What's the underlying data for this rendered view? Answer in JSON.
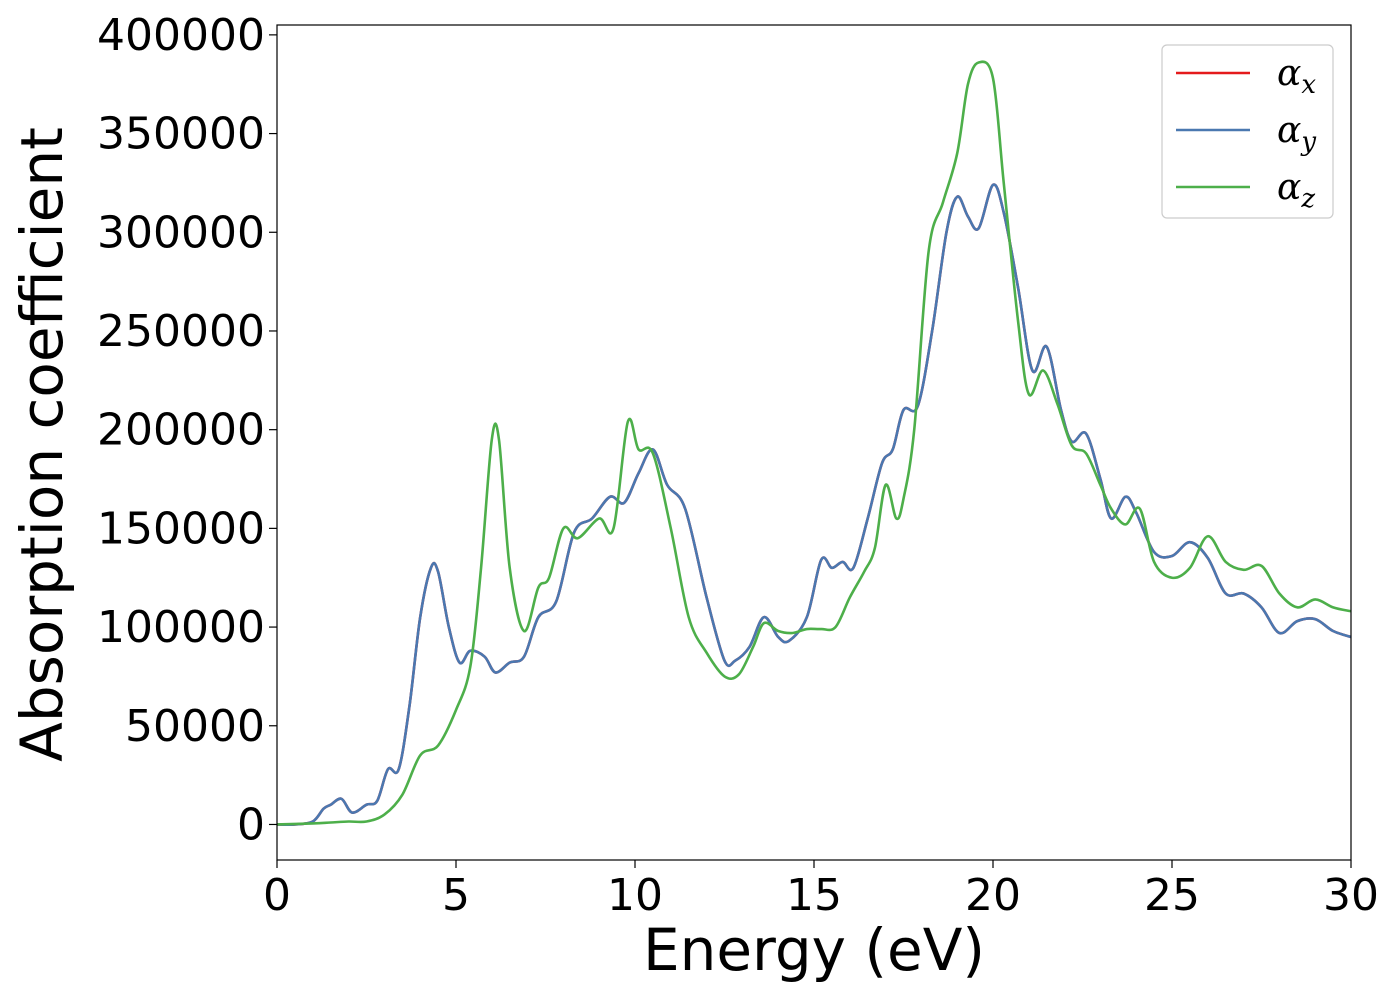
{
  "chart_data": {
    "type": "line",
    "title": "",
    "xlabel": "Energy (eV)",
    "ylabel": "Absorption coefficient",
    "xlim": [
      0,
      30
    ],
    "ylim": [
      -18000,
      405000
    ],
    "xticks": [
      0,
      5,
      10,
      15,
      20,
      25,
      30
    ],
    "xtick_labels": [
      "0",
      "5",
      "10",
      "15",
      "20",
      "25",
      "30"
    ],
    "yticks": [
      0,
      50000,
      100000,
      150000,
      200000,
      250000,
      300000,
      350000,
      400000
    ],
    "ytick_labels": [
      "0",
      "50000",
      "100000",
      "150000",
      "200000",
      "250000",
      "300000",
      "350000",
      "400000"
    ],
    "grid": false,
    "legend_position": "top-right",
    "series": [
      {
        "name": "α_x",
        "legend_base": "α",
        "legend_sub": "x",
        "color": "#e41a1c",
        "points": [
          [
            0,
            0
          ],
          [
            0.5,
            0
          ],
          [
            1.0,
            1500
          ],
          [
            1.3,
            8000
          ],
          [
            1.5,
            10000
          ],
          [
            1.8,
            13000
          ],
          [
            2.1,
            6000
          ],
          [
            2.5,
            10000
          ],
          [
            2.8,
            12000
          ],
          [
            3.1,
            28000
          ],
          [
            3.4,
            28000
          ],
          [
            3.7,
            60000
          ],
          [
            4.0,
            105000
          ],
          [
            4.3,
            130000
          ],
          [
            4.5,
            128000
          ],
          [
            4.8,
            100000
          ],
          [
            5.1,
            82000
          ],
          [
            5.4,
            88000
          ],
          [
            5.8,
            85000
          ],
          [
            6.1,
            77000
          ],
          [
            6.5,
            82000
          ],
          [
            6.9,
            85000
          ],
          [
            7.3,
            105000
          ],
          [
            7.8,
            113000
          ],
          [
            8.3,
            148000
          ],
          [
            8.8,
            155000
          ],
          [
            9.3,
            166000
          ],
          [
            9.7,
            163000
          ],
          [
            10.1,
            178000
          ],
          [
            10.5,
            190000
          ],
          [
            10.9,
            172000
          ],
          [
            11.4,
            160000
          ],
          [
            12.0,
            115000
          ],
          [
            12.5,
            83000
          ],
          [
            12.8,
            83000
          ],
          [
            13.2,
            90000
          ],
          [
            13.6,
            105000
          ],
          [
            14.0,
            95000
          ],
          [
            14.3,
            93000
          ],
          [
            14.8,
            105000
          ],
          [
            15.2,
            134000
          ],
          [
            15.5,
            130000
          ],
          [
            15.8,
            133000
          ],
          [
            16.1,
            130000
          ],
          [
            16.5,
            155000
          ],
          [
            16.9,
            183000
          ],
          [
            17.2,
            190000
          ],
          [
            17.5,
            210000
          ],
          [
            17.9,
            212000
          ],
          [
            18.3,
            250000
          ],
          [
            18.7,
            300000
          ],
          [
            19.0,
            318000
          ],
          [
            19.3,
            308000
          ],
          [
            19.6,
            302000
          ],
          [
            20.0,
            324000
          ],
          [
            20.3,
            310000
          ],
          [
            20.7,
            272000
          ],
          [
            21.1,
            230000
          ],
          [
            21.5,
            242000
          ],
          [
            21.9,
            210000
          ],
          [
            22.2,
            194000
          ],
          [
            22.6,
            198000
          ],
          [
            23.0,
            175000
          ],
          [
            23.3,
            155000
          ],
          [
            23.7,
            166000
          ],
          [
            24.0,
            158000
          ],
          [
            24.5,
            138000
          ],
          [
            25.0,
            136000
          ],
          [
            25.5,
            143000
          ],
          [
            26.0,
            135000
          ],
          [
            26.5,
            117000
          ],
          [
            27.0,
            117000
          ],
          [
            27.5,
            110000
          ],
          [
            28.0,
            97000
          ],
          [
            28.5,
            103000
          ],
          [
            29.0,
            104000
          ],
          [
            29.5,
            98000
          ],
          [
            30.0,
            95000
          ]
        ]
      },
      {
        "name": "α_y",
        "legend_base": "α",
        "legend_sub": "y",
        "color": "#4a78b0",
        "points": [
          [
            0,
            0
          ],
          [
            0.5,
            0
          ],
          [
            1.0,
            1500
          ],
          [
            1.3,
            8000
          ],
          [
            1.5,
            10000
          ],
          [
            1.8,
            13000
          ],
          [
            2.1,
            6000
          ],
          [
            2.5,
            10000
          ],
          [
            2.8,
            12000
          ],
          [
            3.1,
            28000
          ],
          [
            3.4,
            28000
          ],
          [
            3.7,
            60000
          ],
          [
            4.0,
            105000
          ],
          [
            4.3,
            130000
          ],
          [
            4.5,
            128000
          ],
          [
            4.8,
            100000
          ],
          [
            5.1,
            82000
          ],
          [
            5.4,
            88000
          ],
          [
            5.8,
            85000
          ],
          [
            6.1,
            77000
          ],
          [
            6.5,
            82000
          ],
          [
            6.9,
            85000
          ],
          [
            7.3,
            105000
          ],
          [
            7.8,
            113000
          ],
          [
            8.3,
            148000
          ],
          [
            8.8,
            155000
          ],
          [
            9.3,
            166000
          ],
          [
            9.7,
            163000
          ],
          [
            10.1,
            178000
          ],
          [
            10.5,
            190000
          ],
          [
            10.9,
            172000
          ],
          [
            11.4,
            160000
          ],
          [
            12.0,
            115000
          ],
          [
            12.5,
            83000
          ],
          [
            12.8,
            83000
          ],
          [
            13.2,
            90000
          ],
          [
            13.6,
            105000
          ],
          [
            14.0,
            95000
          ],
          [
            14.3,
            93000
          ],
          [
            14.8,
            105000
          ],
          [
            15.2,
            134000
          ],
          [
            15.5,
            130000
          ],
          [
            15.8,
            133000
          ],
          [
            16.1,
            130000
          ],
          [
            16.5,
            155000
          ],
          [
            16.9,
            183000
          ],
          [
            17.2,
            190000
          ],
          [
            17.5,
            210000
          ],
          [
            17.9,
            212000
          ],
          [
            18.3,
            250000
          ],
          [
            18.7,
            300000
          ],
          [
            19.0,
            318000
          ],
          [
            19.3,
            308000
          ],
          [
            19.6,
            302000
          ],
          [
            20.0,
            324000
          ],
          [
            20.3,
            310000
          ],
          [
            20.7,
            272000
          ],
          [
            21.1,
            230000
          ],
          [
            21.5,
            242000
          ],
          [
            21.9,
            210000
          ],
          [
            22.2,
            194000
          ],
          [
            22.6,
            198000
          ],
          [
            23.0,
            175000
          ],
          [
            23.3,
            155000
          ],
          [
            23.7,
            166000
          ],
          [
            24.0,
            158000
          ],
          [
            24.5,
            138000
          ],
          [
            25.0,
            136000
          ],
          [
            25.5,
            143000
          ],
          [
            26.0,
            135000
          ],
          [
            26.5,
            117000
          ],
          [
            27.0,
            117000
          ],
          [
            27.5,
            110000
          ],
          [
            28.0,
            97000
          ],
          [
            28.5,
            103000
          ],
          [
            29.0,
            104000
          ],
          [
            29.5,
            98000
          ],
          [
            30.0,
            95000
          ]
        ]
      },
      {
        "name": "α_z",
        "legend_base": "α",
        "legend_sub": "z",
        "color": "#4daf4a",
        "points": [
          [
            0,
            0
          ],
          [
            1.0,
            500
          ],
          [
            1.5,
            1000
          ],
          [
            2.0,
            1500
          ],
          [
            2.5,
            1500
          ],
          [
            3.0,
            5000
          ],
          [
            3.5,
            15000
          ],
          [
            4.0,
            35000
          ],
          [
            4.5,
            40000
          ],
          [
            5.0,
            58000
          ],
          [
            5.4,
            80000
          ],
          [
            5.7,
            130000
          ],
          [
            6.0,
            195000
          ],
          [
            6.2,
            195000
          ],
          [
            6.5,
            130000
          ],
          [
            6.9,
            98000
          ],
          [
            7.3,
            120000
          ],
          [
            7.6,
            125000
          ],
          [
            8.0,
            150000
          ],
          [
            8.4,
            145000
          ],
          [
            9.0,
            155000
          ],
          [
            9.4,
            150000
          ],
          [
            9.8,
            204000
          ],
          [
            10.1,
            190000
          ],
          [
            10.5,
            188000
          ],
          [
            11.0,
            150000
          ],
          [
            11.5,
            105000
          ],
          [
            12.0,
            87000
          ],
          [
            12.5,
            75000
          ],
          [
            12.9,
            76000
          ],
          [
            13.3,
            90000
          ],
          [
            13.6,
            102000
          ],
          [
            14.0,
            98000
          ],
          [
            14.4,
            97000
          ],
          [
            14.8,
            99000
          ],
          [
            15.2,
            99000
          ],
          [
            15.6,
            100000
          ],
          [
            16.0,
            115000
          ],
          [
            16.4,
            128000
          ],
          [
            16.7,
            140000
          ],
          [
            17.0,
            172000
          ],
          [
            17.3,
            155000
          ],
          [
            17.5,
            165000
          ],
          [
            17.8,
            200000
          ],
          [
            18.2,
            290000
          ],
          [
            18.6,
            315000
          ],
          [
            19.0,
            340000
          ],
          [
            19.3,
            375000
          ],
          [
            19.6,
            386000
          ],
          [
            20.0,
            378000
          ],
          [
            20.3,
            325000
          ],
          [
            20.7,
            255000
          ],
          [
            21.0,
            218000
          ],
          [
            21.4,
            230000
          ],
          [
            21.8,
            213000
          ],
          [
            22.2,
            192000
          ],
          [
            22.6,
            188000
          ],
          [
            23.0,
            172000
          ],
          [
            23.3,
            160000
          ],
          [
            23.7,
            152000
          ],
          [
            24.1,
            160000
          ],
          [
            24.5,
            133000
          ],
          [
            25.0,
            125000
          ],
          [
            25.5,
            130000
          ],
          [
            26.0,
            146000
          ],
          [
            26.5,
            133000
          ],
          [
            27.0,
            129000
          ],
          [
            27.5,
            131000
          ],
          [
            28.0,
            117000
          ],
          [
            28.5,
            110000
          ],
          [
            29.0,
            114000
          ],
          [
            29.5,
            110000
          ],
          [
            30.0,
            108000
          ]
        ]
      }
    ]
  }
}
